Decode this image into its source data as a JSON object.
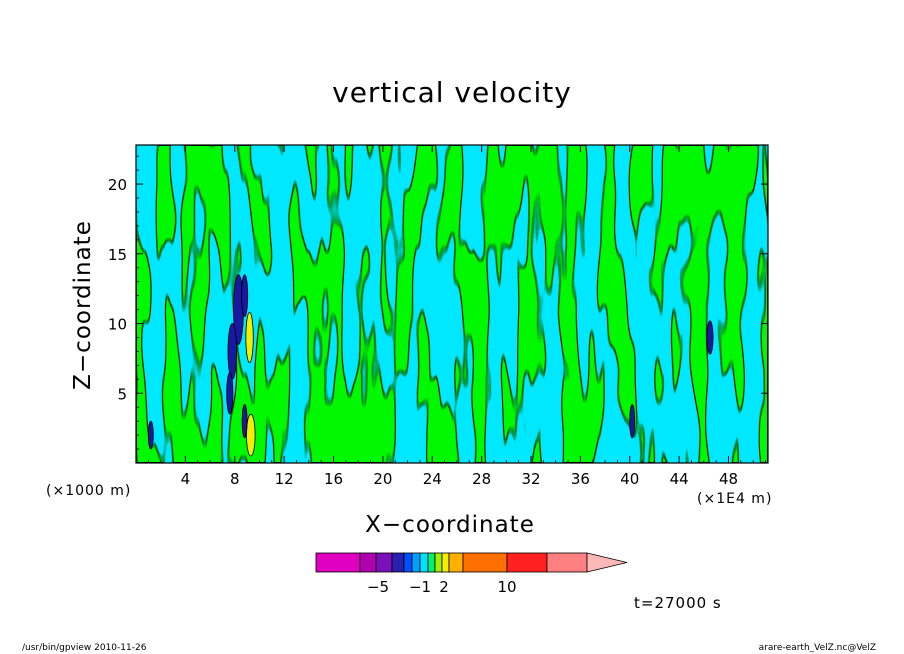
{
  "chart_data": {
    "type": "contour",
    "title": "vertical velocity",
    "xlabel": "X−coordinate",
    "ylabel": "Z−coordinate",
    "x_scale_label": "(×1000 m)",
    "x_scale_label_secondary": "(×1E4 m)",
    "xlim": [
      0,
      51.2
    ],
    "ylim": [
      0,
      22.8
    ],
    "x_ticks": [
      4,
      8,
      12,
      16,
      20,
      24,
      28,
      32,
      36,
      40,
      44,
      48
    ],
    "y_ticks": [
      5,
      10,
      15,
      20
    ],
    "grid": false,
    "field_description_colors": {
      "negative_weak": "#00e8ff",
      "positive_weak": "#00f000",
      "strong_negative": "#1818a0",
      "strong_positive": "#f0f000"
    },
    "colorbar": {
      "colors": [
        "#e000c0",
        "#b000b0",
        "#7a10b8",
        "#2a20b0",
        "#0050ff",
        "#00a0ff",
        "#00e0ff",
        "#00f070",
        "#a0f000",
        "#f0f000",
        "#ffb000",
        "#ff7000",
        "#ff2020",
        "#ff8080",
        "#ffb8b8"
      ],
      "labels": [
        "−5",
        "−1",
        "2",
        "10"
      ]
    },
    "time_label": "t=27000 s"
  },
  "footer": {
    "left": "/usr/bin/gpview   2010-11-26",
    "right": "arare-earth_VelZ.nc@VelZ"
  }
}
